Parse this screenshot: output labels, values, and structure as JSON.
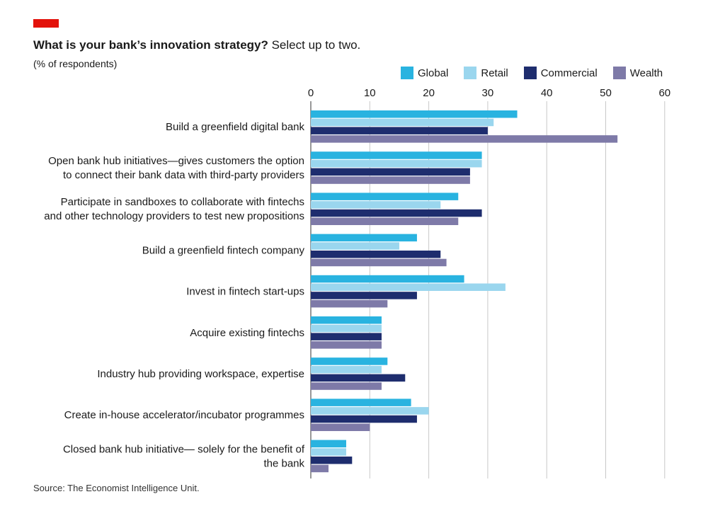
{
  "header": {
    "title_bold": "What is your bank’s innovation strategy?",
    "title_rest": " Select up to two.",
    "subtitle": "(% of respondents)"
  },
  "source": "Source: The Economist Intelligence Unit.",
  "colors": {
    "accent": "#e3120b",
    "Global": "#29b3e0",
    "Retail": "#9ad6ee",
    "Commercial": "#1e2d6e",
    "Wealth": "#7e7aa8",
    "gridline": "#c8c8c8"
  },
  "chart_data": {
    "type": "bar",
    "orientation": "horizontal",
    "title": "What is your bank’s innovation strategy? Select up to two.",
    "subtitle": "(% of respondents)",
    "xlim": [
      0,
      60
    ],
    "ticks": [
      0,
      10,
      20,
      30,
      40,
      50,
      60
    ],
    "grid": true,
    "legend_position": "top-right",
    "categories": [
      [
        "Build a greenfield digital bank"
      ],
      [
        "Open bank hub initiatives—gives customers the option",
        "to connect their bank data with third-party providers"
      ],
      [
        "Participate in sandboxes to collaborate with fintechs",
        "and other technology providers to test new propositions"
      ],
      [
        "Build a greenfield fintech company"
      ],
      [
        "Invest in fintech start-ups"
      ],
      [
        "Acquire existing fintechs"
      ],
      [
        "Industry hub providing workspace, expertise"
      ],
      [
        "Create in-house accelerator/incubator programmes"
      ],
      [
        "Closed bank hub initiative— solely for the benefit of",
        "the bank"
      ]
    ],
    "series": [
      {
        "name": "Global",
        "values": [
          35,
          29,
          25,
          18,
          26,
          12,
          13,
          17,
          6
        ]
      },
      {
        "name": "Retail",
        "values": [
          31,
          29,
          22,
          15,
          33,
          12,
          12,
          20,
          6
        ]
      },
      {
        "name": "Commercial",
        "values": [
          30,
          27,
          29,
          22,
          18,
          12,
          16,
          18,
          7
        ]
      },
      {
        "name": "Wealth",
        "values": [
          52,
          27,
          25,
          23,
          13,
          12,
          12,
          10,
          3
        ]
      }
    ]
  }
}
